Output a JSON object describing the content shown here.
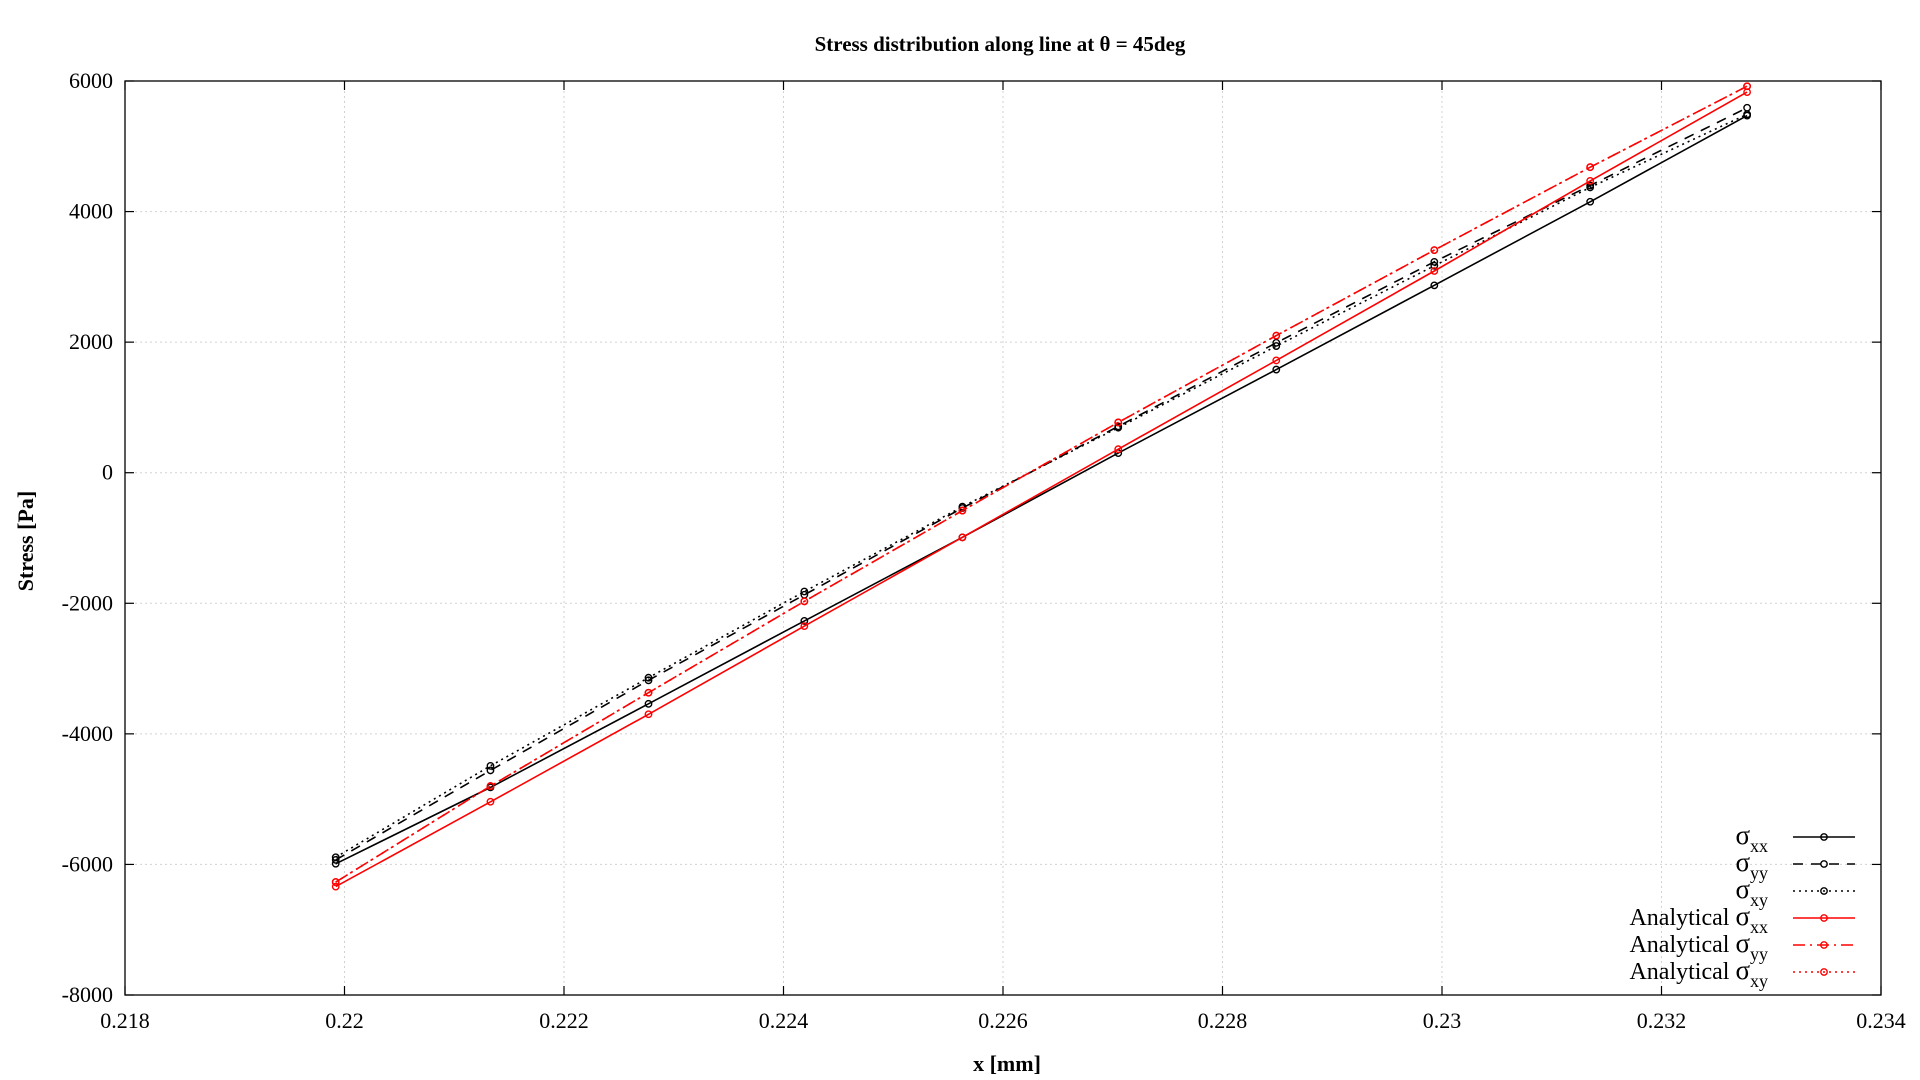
{
  "chart_data": {
    "type": "line",
    "title": "Stress distribution along line at θ = 45deg",
    "xlabel": "x [mm]",
    "ylabel": "Stress [Pa]",
    "xlim": [
      0.218,
      0.234
    ],
    "ylim": [
      -8000,
      6000
    ],
    "xticks": [
      0.218,
      0.22,
      0.222,
      0.224,
      0.226,
      0.228,
      0.23,
      0.232,
      0.234
    ],
    "xtick_labels": [
      "0.218",
      "0.22",
      "0.222",
      "0.224",
      "0.226",
      "0.228",
      "0.23",
      "0.232",
      "0.234"
    ],
    "yticks": [
      -8000,
      -6000,
      -4000,
      -2000,
      0,
      2000,
      4000,
      6000
    ],
    "ytick_labels": [
      "-8000",
      "-6000",
      "-4000",
      "-2000",
      "0",
      "2000",
      "4000",
      "6000"
    ],
    "grid": true,
    "legend_position": "bottom-right",
    "x": [
      0.21992,
      0.22133,
      0.22277,
      0.22419,
      0.22563,
      0.22705,
      0.22849,
      0.22993,
      0.23135,
      0.23278
    ],
    "series": [
      {
        "prefix": "",
        "sym": "σ",
        "sub": "xx",
        "color": "#000000",
        "dash": "solid",
        "values": [
          -5990,
          -4820,
          -3540,
          -2270,
          -990,
          300,
          1580,
          2870,
          4150,
          5470
        ]
      },
      {
        "prefix": "",
        "sym": "σ",
        "sub": "yy",
        "color": "#000000",
        "dash": "dashed",
        "values": [
          -5930,
          -4560,
          -3180,
          -1870,
          -540,
          710,
          1990,
          3230,
          4400,
          5590
        ]
      },
      {
        "prefix": "",
        "sym": "σ",
        "sub": "xy",
        "color": "#000000",
        "dash": "dotted",
        "values": [
          -5890,
          -4490,
          -3140,
          -1820,
          -520,
          690,
          1940,
          3170,
          4370,
          5490
        ]
      },
      {
        "prefix": "Analytical ",
        "sym": "σ",
        "sub": "xx",
        "color": "#ff0000",
        "dash": "solid",
        "values": [
          -6340,
          -5040,
          -3700,
          -2350,
          -990,
          360,
          1720,
          3090,
          4470,
          5830
        ]
      },
      {
        "prefix": "Analytical ",
        "sym": "σ",
        "sub": "yy",
        "color": "#ff0000",
        "dash": "dashdot",
        "values": [
          -6270,
          -4800,
          -3370,
          -1970,
          -580,
          770,
          2100,
          3410,
          4680,
          5920
        ]
      },
      {
        "prefix": "Analytical ",
        "sym": "σ",
        "sub": "xy",
        "color": "#ff0000",
        "dash": "dotted",
        "values": [
          -6270,
          -4800,
          -3370,
          -1970,
          -580,
          770,
          2100,
          3410,
          4680,
          5920
        ]
      }
    ]
  }
}
